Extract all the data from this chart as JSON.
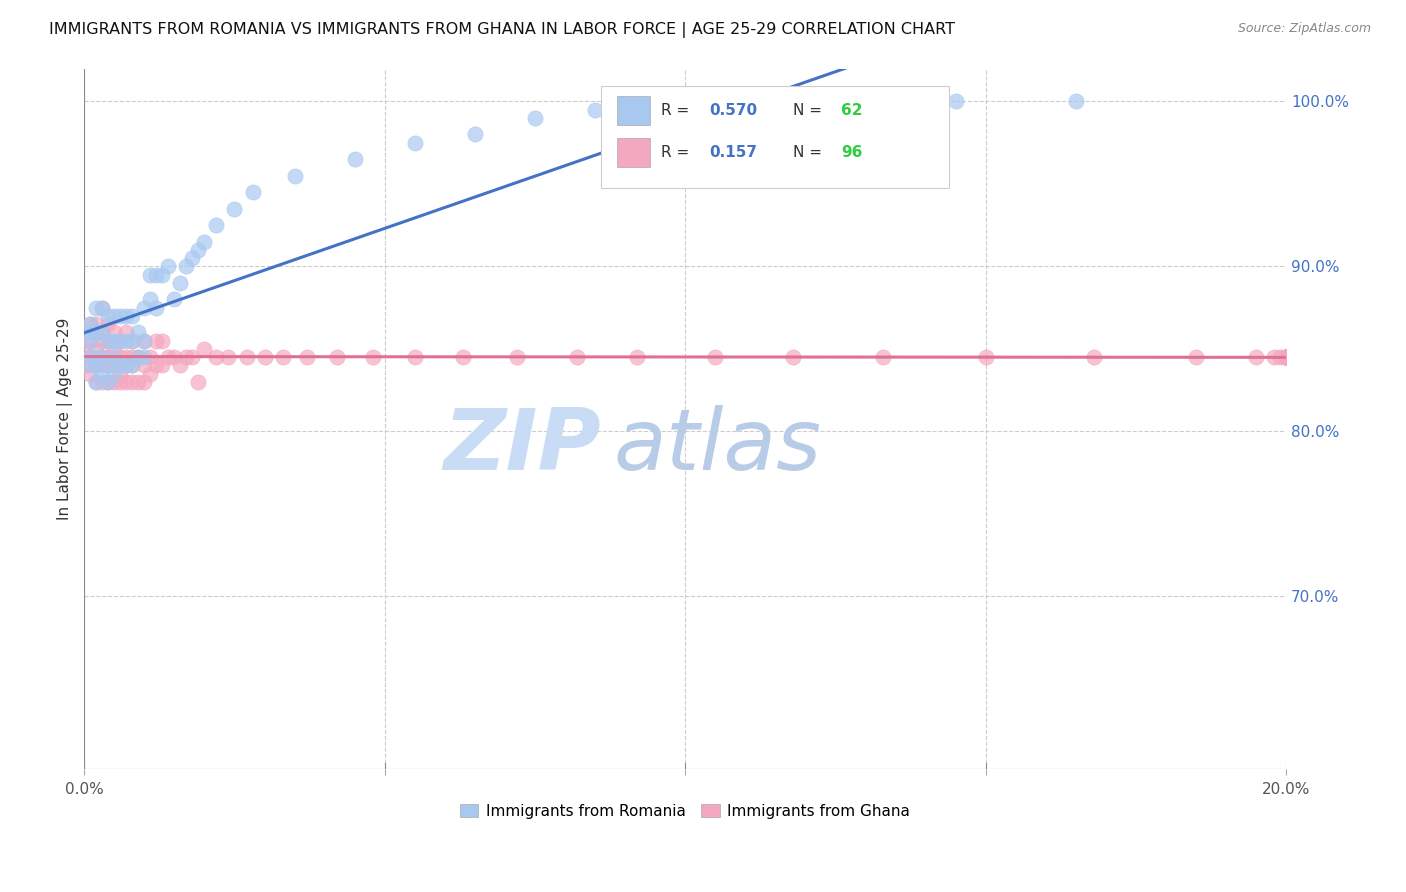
{
  "title": "IMMIGRANTS FROM ROMANIA VS IMMIGRANTS FROM GHANA IN LABOR FORCE | AGE 25-29 CORRELATION CHART",
  "source": "Source: ZipAtlas.com",
  "ylabel": "In Labor Force | Age 25-29",
  "x_min": 0.0,
  "x_max": 0.2,
  "y_min": 0.595,
  "y_max": 1.02,
  "romania_color": "#a8c8f0",
  "ghana_color": "#f4a8c0",
  "romania_line_color": "#4472c4",
  "ghana_line_color": "#e07090",
  "romania_R": 0.57,
  "romania_N": 62,
  "ghana_R": 0.157,
  "ghana_N": 96,
  "watermark_zip_color": "#c8ddf5",
  "watermark_atlas_color": "#b8cce8",
  "romania_scatter_x": [
    0.001,
    0.001,
    0.001,
    0.001,
    0.001,
    0.002,
    0.002,
    0.002,
    0.002,
    0.002,
    0.003,
    0.003,
    0.003,
    0.003,
    0.004,
    0.004,
    0.004,
    0.004,
    0.005,
    0.005,
    0.005,
    0.005,
    0.006,
    0.006,
    0.006,
    0.007,
    0.007,
    0.007,
    0.008,
    0.008,
    0.008,
    0.009,
    0.009,
    0.01,
    0.01,
    0.01,
    0.011,
    0.011,
    0.012,
    0.012,
    0.013,
    0.014,
    0.015,
    0.016,
    0.017,
    0.018,
    0.019,
    0.02,
    0.022,
    0.025,
    0.028,
    0.035,
    0.045,
    0.055,
    0.065,
    0.075,
    0.085,
    0.095,
    0.11,
    0.125,
    0.145,
    0.165
  ],
  "romania_scatter_y": [
    0.84,
    0.845,
    0.855,
    0.86,
    0.865,
    0.83,
    0.84,
    0.845,
    0.86,
    0.875,
    0.835,
    0.845,
    0.86,
    0.875,
    0.83,
    0.84,
    0.855,
    0.87,
    0.835,
    0.845,
    0.855,
    0.87,
    0.84,
    0.855,
    0.87,
    0.84,
    0.855,
    0.87,
    0.84,
    0.855,
    0.87,
    0.845,
    0.86,
    0.845,
    0.855,
    0.875,
    0.88,
    0.895,
    0.875,
    0.895,
    0.895,
    0.9,
    0.88,
    0.89,
    0.9,
    0.905,
    0.91,
    0.915,
    0.925,
    0.935,
    0.945,
    0.955,
    0.965,
    0.975,
    0.98,
    0.99,
    0.995,
    1.0,
    1.0,
    1.0,
    1.0,
    1.0
  ],
  "ghana_scatter_x": [
    0.0,
    0.0,
    0.001,
    0.001,
    0.001,
    0.001,
    0.002,
    0.002,
    0.002,
    0.002,
    0.002,
    0.003,
    0.003,
    0.003,
    0.003,
    0.003,
    0.003,
    0.004,
    0.004,
    0.004,
    0.004,
    0.004,
    0.005,
    0.005,
    0.005,
    0.005,
    0.006,
    0.006,
    0.006,
    0.006,
    0.007,
    0.007,
    0.007,
    0.007,
    0.008,
    0.008,
    0.008,
    0.008,
    0.009,
    0.009,
    0.01,
    0.01,
    0.01,
    0.011,
    0.011,
    0.012,
    0.012,
    0.013,
    0.013,
    0.014,
    0.015,
    0.016,
    0.017,
    0.018,
    0.019,
    0.02,
    0.022,
    0.024,
    0.027,
    0.03,
    0.033,
    0.037,
    0.042,
    0.048,
    0.055,
    0.063,
    0.072,
    0.082,
    0.092,
    0.105,
    0.118,
    0.133,
    0.15,
    0.168,
    0.185,
    0.195,
    0.198,
    0.199,
    0.2,
    0.2,
    0.2,
    0.2,
    0.2,
    0.2,
    0.2,
    0.2,
    0.2,
    0.2,
    0.2,
    0.2,
    0.2,
    0.2,
    0.2,
    0.2,
    0.2,
    0.2
  ],
  "ghana_scatter_y": [
    0.84,
    0.85,
    0.835,
    0.845,
    0.855,
    0.865,
    0.83,
    0.84,
    0.85,
    0.86,
    0.865,
    0.83,
    0.84,
    0.845,
    0.855,
    0.86,
    0.875,
    0.83,
    0.84,
    0.845,
    0.855,
    0.865,
    0.83,
    0.84,
    0.85,
    0.86,
    0.83,
    0.835,
    0.845,
    0.855,
    0.83,
    0.84,
    0.845,
    0.86,
    0.83,
    0.84,
    0.845,
    0.855,
    0.83,
    0.845,
    0.83,
    0.84,
    0.855,
    0.835,
    0.845,
    0.84,
    0.855,
    0.84,
    0.855,
    0.845,
    0.845,
    0.84,
    0.845,
    0.845,
    0.83,
    0.85,
    0.845,
    0.845,
    0.845,
    0.845,
    0.845,
    0.845,
    0.845,
    0.845,
    0.845,
    0.845,
    0.845,
    0.845,
    0.845,
    0.845,
    0.845,
    0.845,
    0.845,
    0.845,
    0.845,
    0.845,
    0.845,
    0.845,
    0.845,
    0.845,
    0.845,
    0.845,
    0.845,
    0.845,
    0.845,
    0.845,
    0.845,
    0.845,
    0.845,
    0.845,
    0.845,
    0.845,
    0.845,
    0.845,
    0.845,
    0.845
  ]
}
